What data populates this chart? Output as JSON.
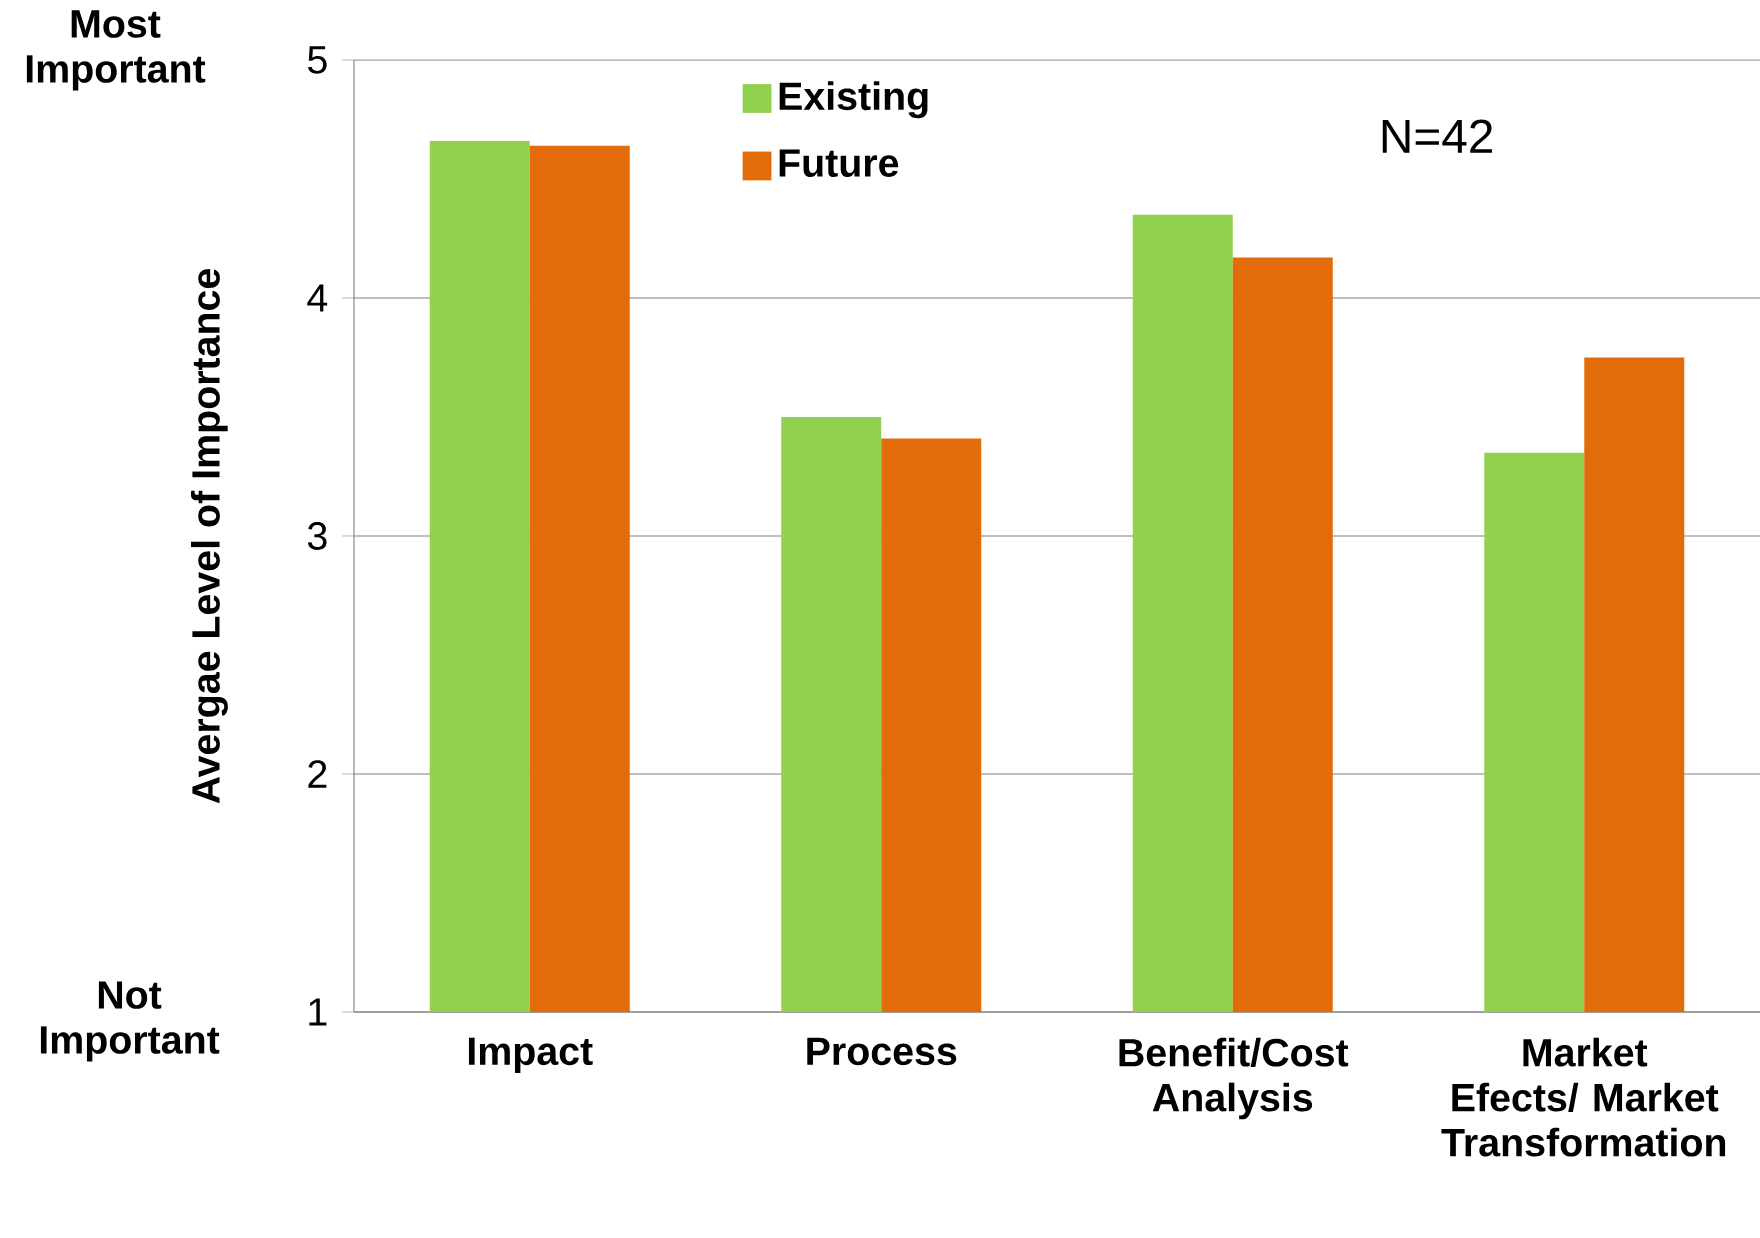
{
  "chart_data": {
    "type": "bar",
    "categories": [
      "Impact",
      "Process",
      "Benefit/Cost Analysis",
      "Market Efects/ Market Transformation"
    ],
    "series": [
      {
        "name": "Existing",
        "color": "#92d050",
        "values": [
          4.66,
          3.5,
          4.35,
          3.35
        ]
      },
      {
        "name": "Future",
        "color": "#e36c0a",
        "values": [
          4.64,
          3.41,
          4.17,
          3.75
        ]
      }
    ],
    "ylabel": "Avergae Level of Importance",
    "ylim": [
      1,
      5
    ],
    "yticks": [
      1,
      2,
      3,
      4,
      5
    ],
    "grid": "y",
    "legend": "top",
    "annotations": [
      "Most Important",
      "Not Important",
      "N=42"
    ]
  }
}
